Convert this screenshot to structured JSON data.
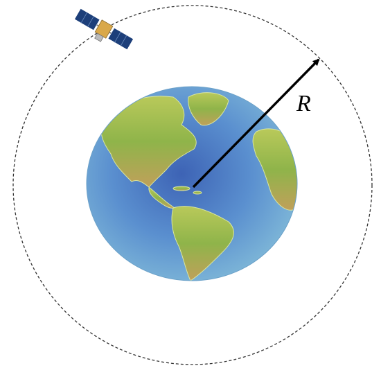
{
  "label": "R"
}
